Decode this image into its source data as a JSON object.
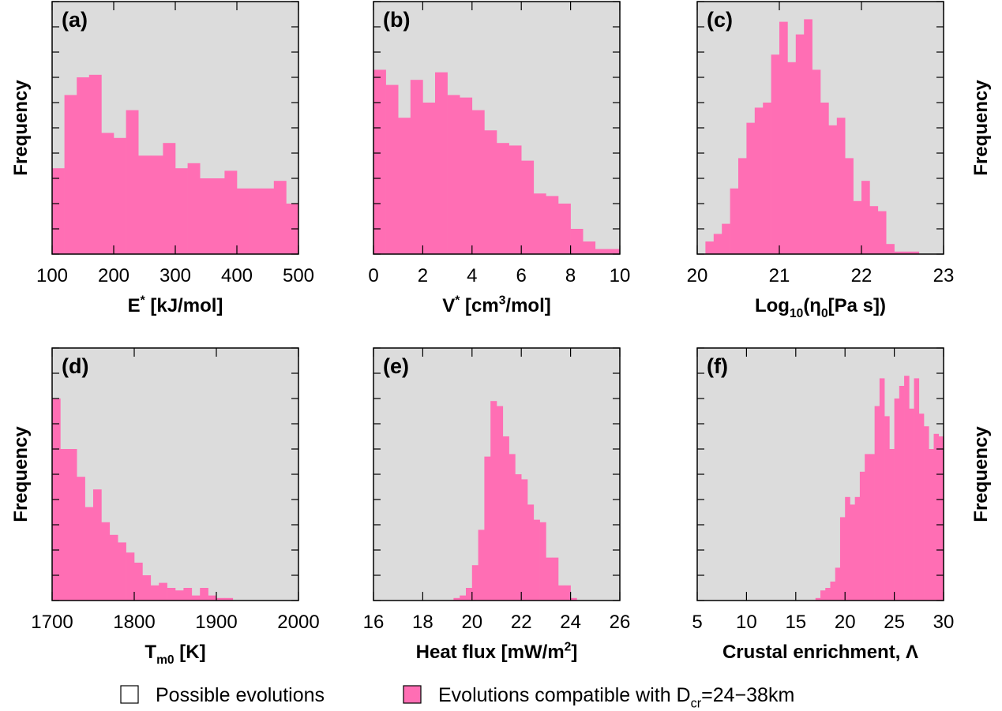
{
  "chart_data": [
    {
      "type": "histogram",
      "label": "(a)",
      "xlabel": [
        {
          "text": "E"
        },
        {
          "text": "*",
          "shift": "sup"
        },
        {
          "text": " [kJ/mol]"
        }
      ],
      "ylabel": "Frequency",
      "ylabel_side": "left",
      "bins": [
        100,
        120,
        140,
        160,
        180,
        200,
        220,
        240,
        260,
        280,
        300,
        320,
        340,
        360,
        380,
        400,
        420,
        440,
        460,
        480,
        500
      ],
      "values": [
        3.4,
        6.3,
        7.0,
        7.1,
        4.8,
        4.6,
        5.7,
        3.9,
        3.9,
        4.4,
        3.4,
        3.6,
        3.0,
        3.0,
        3.3,
        2.6,
        2.6,
        2.6,
        2.9,
        2.0
      ],
      "color": "#ff6eb4",
      "xlim": [
        100,
        500
      ],
      "xticks": [
        100,
        200,
        300,
        400,
        500
      ],
      "ylim": [
        0,
        10
      ],
      "yticks": [
        0,
        1,
        2,
        3,
        4,
        5,
        6,
        7,
        8,
        9,
        10
      ]
    },
    {
      "type": "histogram",
      "label": "(b)",
      "xlabel": [
        {
          "text": "V"
        },
        {
          "text": "*",
          "shift": "sup"
        },
        {
          "text": "  [cm"
        },
        {
          "text": "3",
          "shift": "sup"
        },
        {
          "text": "/mol]"
        }
      ],
      "bins": [
        0,
        0.5,
        1,
        1.5,
        2,
        2.5,
        3,
        3.5,
        4,
        4.5,
        5,
        5.5,
        6,
        6.5,
        7,
        7.5,
        8,
        8.5,
        9,
        9.5,
        10
      ],
      "values": [
        7.3,
        6.7,
        5.4,
        6.9,
        6.0,
        7.2,
        6.3,
        6.2,
        5.7,
        4.9,
        4.4,
        4.3,
        3.7,
        2.4,
        2.3,
        2.0,
        1.0,
        0.5,
        0.2,
        0.2
      ],
      "color": "#ff6eb4",
      "xlim": [
        0,
        10
      ],
      "xticks": [
        0,
        2,
        4,
        6,
        8,
        10
      ],
      "ylim": [
        0,
        10
      ],
      "yticks": [
        0,
        1,
        2,
        3,
        4,
        5,
        6,
        7,
        8,
        9,
        10
      ]
    },
    {
      "type": "histogram",
      "label": "(c)",
      "xlabel": [
        {
          "text": "Log"
        },
        {
          "text": "10",
          "shift": "sub"
        },
        {
          "text": "(η"
        },
        {
          "text": "0",
          "shift": "sub"
        },
        {
          "text": "[Pa s])"
        }
      ],
      "ylabel": "Frequency",
      "ylabel_side": "right",
      "bins": [
        20,
        20.1,
        20.2,
        20.3,
        20.4,
        20.5,
        20.6,
        20.7,
        20.8,
        20.9,
        21,
        21.1,
        21.2,
        21.3,
        21.4,
        21.5,
        21.6,
        21.7,
        21.8,
        21.9,
        22,
        22.1,
        22.2,
        22.3,
        22.4,
        22.5,
        22.6,
        22.7,
        22.8,
        22.9,
        23
      ],
      "values": [
        0,
        0.5,
        0.8,
        1.2,
        2.6,
        3.8,
        5.2,
        5.8,
        6.0,
        7.9,
        9.2,
        7.6,
        8.7,
        9.3,
        7.3,
        6.0,
        5.1,
        5.4,
        3.8,
        2.1,
        2.9,
        1.9,
        1.7,
        0.4,
        0.1,
        0.1,
        0.1,
        0,
        0,
        0
      ],
      "color": "#ff6eb4",
      "xlim": [
        20,
        23
      ],
      "xticks": [
        20,
        21,
        22,
        23
      ],
      "ylim": [
        0,
        10
      ],
      "yticks": [
        0,
        1,
        2,
        3,
        4,
        5,
        6,
        7,
        8,
        9,
        10
      ]
    },
    {
      "type": "histogram",
      "label": "(d)",
      "xlabel": [
        {
          "text": "T"
        },
        {
          "text": "m0",
          "shift": "sub"
        },
        {
          "text": " [K]"
        }
      ],
      "ylabel": "Frequency",
      "ylabel_side": "left",
      "bins": [
        1700,
        1710,
        1720,
        1730,
        1740,
        1750,
        1760,
        1770,
        1780,
        1790,
        1800,
        1810,
        1820,
        1830,
        1840,
        1850,
        1860,
        1870,
        1880,
        1890,
        1900,
        1910,
        1920,
        1930,
        1940,
        1950,
        1960,
        1970,
        1980,
        1990,
        2000
      ],
      "values": [
        8.0,
        6.0,
        6.0,
        4.9,
        3.7,
        4.4,
        3.1,
        2.6,
        2.3,
        1.9,
        1.5,
        1.0,
        0.6,
        0.7,
        0.5,
        0.4,
        0.5,
        0.2,
        0.5,
        0.2,
        0.1,
        0.1,
        0,
        0,
        0,
        0,
        0,
        0,
        0,
        0
      ],
      "color": "#ff6eb4",
      "xlim": [
        1700,
        2000
      ],
      "xticks": [
        1700,
        1800,
        1900,
        2000
      ],
      "ylim": [
        0,
        10
      ],
      "yticks": [
        0,
        1,
        2,
        3,
        4,
        5,
        6,
        7,
        8,
        9,
        10
      ]
    },
    {
      "type": "histogram",
      "label": "(e)",
      "xlabel": [
        {
          "text": "Heat flux [mW/m"
        },
        {
          "text": "2",
          "shift": "sup"
        },
        {
          "text": "]"
        }
      ],
      "bins": [
        16,
        16.25,
        16.5,
        16.75,
        17,
        17.25,
        17.5,
        17.75,
        18,
        18.25,
        18.5,
        18.75,
        19,
        19.25,
        19.5,
        19.75,
        20,
        20.25,
        20.5,
        20.75,
        21,
        21.25,
        21.5,
        21.75,
        22,
        22.25,
        22.5,
        22.75,
        23,
        23.25,
        23.5,
        23.75,
        24,
        24.25,
        24.5,
        24.75,
        25,
        25.25,
        25.5,
        25.75,
        26
      ],
      "values": [
        0,
        0,
        0,
        0,
        0,
        0,
        0,
        0,
        0,
        0,
        0,
        0,
        0,
        0.1,
        0.2,
        0.5,
        1.4,
        2.8,
        5.7,
        7.9,
        7.7,
        6.5,
        5.8,
        5.0,
        4.8,
        3.8,
        3.2,
        3.1,
        1.7,
        1.7,
        0.6,
        0.6,
        0.1,
        0,
        0,
        0,
        0,
        0,
        0,
        0
      ],
      "color": "#ff6eb4",
      "xlim": [
        16,
        26
      ],
      "xticks": [
        16,
        18,
        20,
        22,
        24,
        26
      ],
      "ylim": [
        0,
        10
      ],
      "yticks": [
        0,
        1,
        2,
        3,
        4,
        5,
        6,
        7,
        8,
        9,
        10
      ]
    },
    {
      "type": "histogram",
      "label": "(f)",
      "xlabel": [
        {
          "text": "Crustal enrichment, Λ"
        }
      ],
      "ylabel": "Frequency",
      "ylabel_side": "right",
      "bins": [
        5,
        5.5,
        6,
        6.5,
        7,
        7.5,
        8,
        8.5,
        9,
        9.5,
        10,
        10.5,
        11,
        11.5,
        12,
        12.5,
        13,
        13.5,
        14,
        14.5,
        15,
        15.5,
        16,
        16.5,
        17,
        17.5,
        18,
        18.5,
        19,
        19.5,
        20,
        20.5,
        21,
        21.5,
        22,
        22.5,
        23,
        23.5,
        24,
        24.5,
        25,
        25.5,
        26,
        26.5,
        27,
        27.5,
        28,
        28.5,
        29,
        29.5,
        30
      ],
      "values": [
        0,
        0,
        0,
        0,
        0,
        0,
        0,
        0,
        0,
        0,
        0,
        0,
        0,
        0,
        0,
        0,
        0,
        0,
        0,
        0,
        0,
        0,
        0,
        0,
        0.1,
        0.4,
        0.5,
        0.75,
        1.3,
        3.3,
        4.1,
        3.8,
        4.1,
        5.1,
        5.8,
        5.8,
        7.7,
        8.8,
        7.3,
        6.0,
        8.0,
        8.5,
        8.9,
        7.6,
        8.8,
        7.4,
        6.9,
        6.0,
        6.6,
        6.5
      ],
      "color": "#ff6eb4",
      "xlim": [
        5,
        30
      ],
      "xticks": [
        5,
        10,
        15,
        20,
        25,
        30
      ],
      "ylim": [
        0,
        10
      ],
      "yticks": [
        0,
        1,
        2,
        3,
        4,
        5,
        6,
        7,
        8,
        9,
        10
      ]
    }
  ],
  "legend": [
    {
      "name": [
        {
          "text": "Possible evolutions"
        }
      ],
      "color": "#ffffff"
    },
    {
      "name": [
        {
          "text": "Evolutions compatible with D"
        },
        {
          "text": "cr",
          "shift": "sub"
        },
        {
          "text": "=24−38km"
        }
      ],
      "color": "#ff6eb4"
    }
  ]
}
